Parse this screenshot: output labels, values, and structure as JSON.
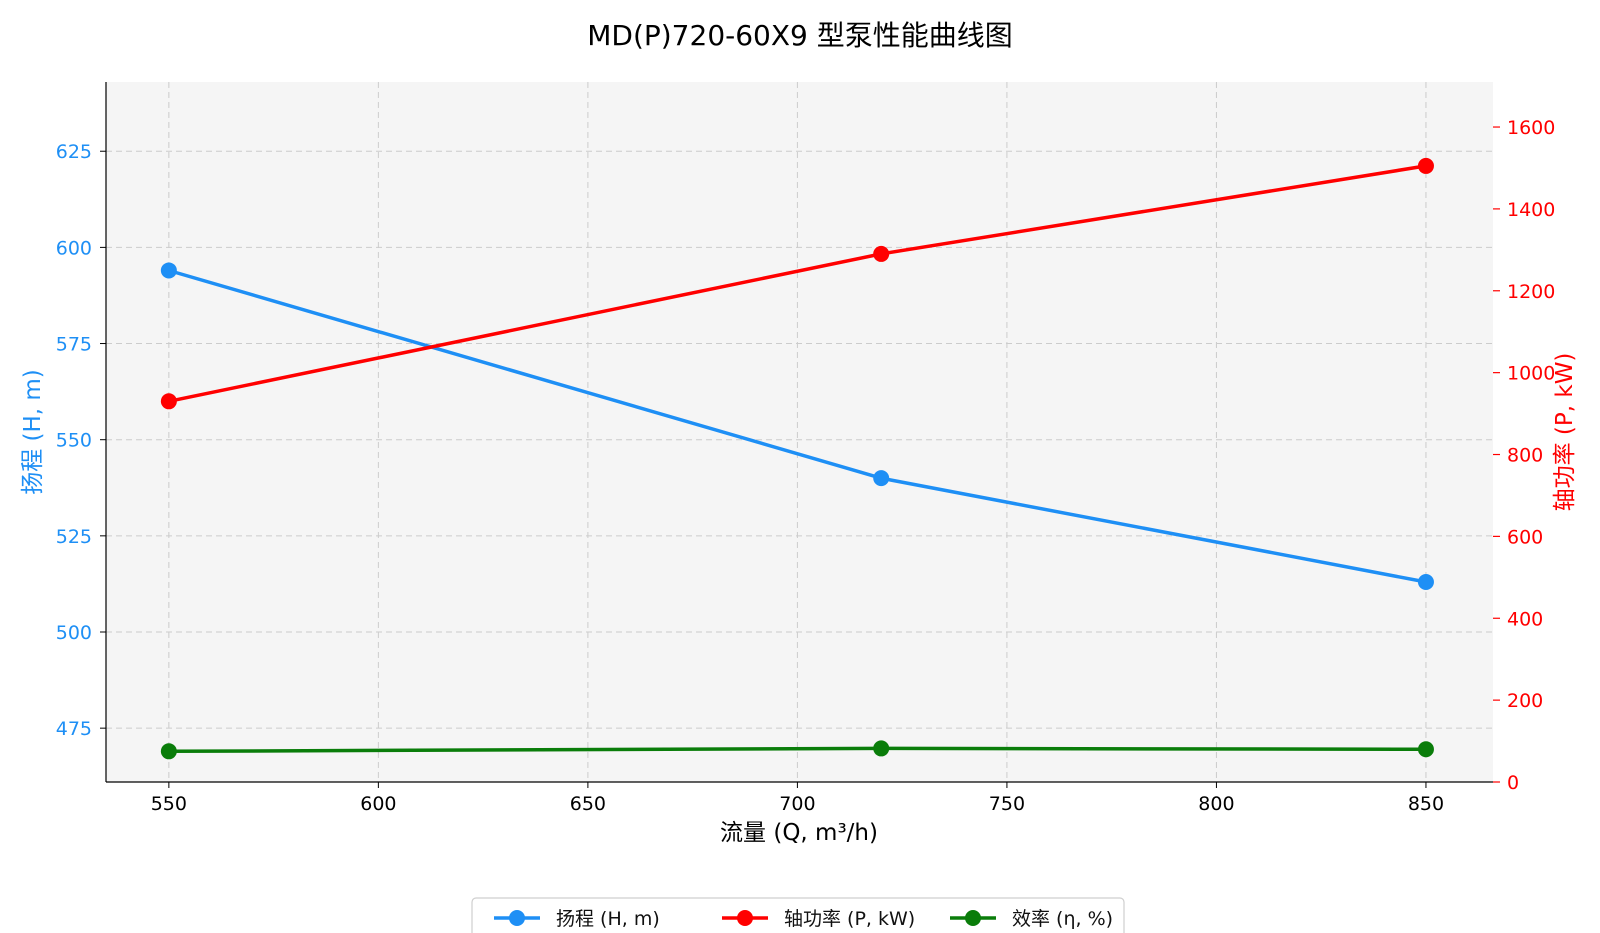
{
  "chart_data": {
    "type": "line",
    "title": "MD(P)720-60X9 型泵性能曲线图",
    "xlabel": "流量 (Q, m³/h)",
    "ylabel_left": "扬程 (H, m)",
    "ylabel_right": "轴功率 (P, kW)",
    "x": [
      550,
      720,
      850
    ],
    "xlim": [
      535,
      866
    ],
    "xticks": [
      550,
      600,
      650,
      700,
      750,
      800,
      850
    ],
    "ylim_left": [
      461,
      643
    ],
    "yticks_left": [
      475,
      500,
      525,
      550,
      575,
      600,
      625
    ],
    "ylim_right": [
      0,
      1710
    ],
    "yticks_right": [
      0,
      200,
      400,
      600,
      800,
      1000,
      1200,
      1400,
      1600
    ],
    "grid": true,
    "legend_position": "bottom-center",
    "series": [
      {
        "name": "扬程 (H, m)",
        "axis": "left",
        "color": "#1e8ff5",
        "values": [
          594,
          540,
          513
        ]
      },
      {
        "name": "轴功率 (P, kW)",
        "axis": "right",
        "color": "#ff0000",
        "values": [
          930,
          1290,
          1505
        ]
      },
      {
        "name": "效率 (η, %)",
        "axis": "right",
        "color": "#0a7d0a",
        "values": [
          75,
          82,
          80
        ]
      }
    ],
    "colors": {
      "left_axis": "#1e8ff5",
      "right_axis": "#ff0000",
      "plot_bg": "#f5f5f5",
      "grid": "#cccccc"
    }
  }
}
